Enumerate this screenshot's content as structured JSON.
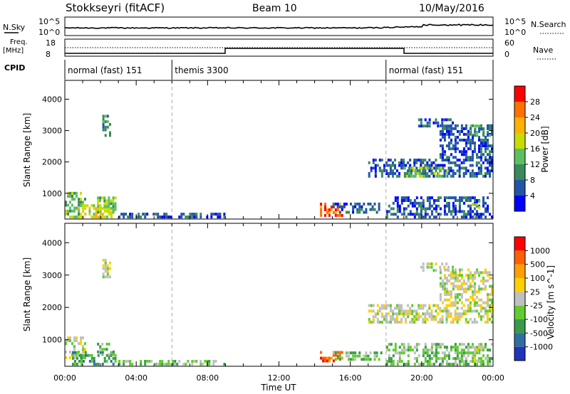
{
  "header": {
    "title": "Stokkseyri (fitACF)",
    "beam": "Beam 10",
    "date": "10/May/2016"
  },
  "top_panels": {
    "nsky_label": "N.Sky",
    "nsky_ticks": [
      "10^5",
      "10^0"
    ],
    "nsearch_label": "N.Search",
    "nsearch_ticks": [
      "10^5",
      "10^0"
    ],
    "freq_label": "Freq.",
    "freq_unit": "[MHz]",
    "freq_ticks": [
      "18",
      "8"
    ],
    "nave_label": "Nave",
    "nave_ticks": [
      "60",
      "0"
    ],
    "cpid_label": "CPID",
    "cpid_segments": [
      {
        "label": "normal (fast) 151",
        "start_h": 0,
        "end_h": 6
      },
      {
        "label": "themis 3300",
        "start_h": 6,
        "end_h": 18
      },
      {
        "label": "normal (fast) 151",
        "start_h": 18,
        "end_h": 24
      }
    ]
  },
  "chart_data": [
    {
      "type": "heatmap",
      "name": "power",
      "ylabel": "Slant Range [km]",
      "xlabel": "Time UT",
      "xlim": [
        0,
        24
      ],
      "ylim": [
        180,
        4600
      ],
      "y_ticks": [
        "1000",
        "2000",
        "3000",
        "4000"
      ],
      "x_ticks": [
        "00:00",
        "04:00",
        "08:00",
        "12:00",
        "16:00",
        "20:00",
        "00:00"
      ],
      "colorbar_label": "Power [dB]",
      "colorbar_ticks": [
        "4",
        "8",
        "12",
        "16",
        "20",
        "24",
        "28"
      ],
      "colorbar_range": [
        0,
        32
      ],
      "colors": [
        "#0000ff",
        "#2255aa",
        "#3a8a5a",
        "#5cc060",
        "#c8dc00",
        "#ffb000",
        "#ff7000",
        "#ff0000"
      ],
      "regions": [
        {
          "t0": 0.0,
          "t1": 1.2,
          "r0": 200,
          "r1": 1050,
          "level": 3
        },
        {
          "t0": 0.6,
          "t1": 2.8,
          "r0": 200,
          "r1": 650,
          "level": 4
        },
        {
          "t0": 1.8,
          "t1": 2.9,
          "r0": 350,
          "r1": 900,
          "level": 3
        },
        {
          "t0": 2.1,
          "t1": 2.6,
          "r0": 2800,
          "r1": 3500,
          "level": 2
        },
        {
          "t0": 3.0,
          "t1": 9.0,
          "r0": 200,
          "r1": 380,
          "level": 1
        },
        {
          "t0": 14.3,
          "t1": 15.6,
          "r0": 250,
          "r1": 700,
          "level": 6
        },
        {
          "t0": 15.0,
          "t1": 17.8,
          "r0": 350,
          "r1": 700,
          "level": 1
        },
        {
          "t0": 17.0,
          "t1": 24.0,
          "r0": 1500,
          "r1": 2100,
          "level": 1
        },
        {
          "t0": 19.0,
          "t1": 21.5,
          "r0": 1500,
          "r1": 1850,
          "level": 3
        },
        {
          "t0": 21.0,
          "t1": 24.0,
          "r0": 2100,
          "r1": 3200,
          "level": 1
        },
        {
          "t0": 22.7,
          "t1": 24.0,
          "r0": 2800,
          "r1": 3200,
          "level": 2
        },
        {
          "t0": 19.8,
          "t1": 21.8,
          "r0": 3100,
          "r1": 3400,
          "level": 1
        },
        {
          "t0": 18.0,
          "t1": 24.0,
          "r0": 200,
          "r1": 900,
          "level": 1
        },
        {
          "t0": 22.8,
          "t1": 23.3,
          "r0": 500,
          "r1": 800,
          "level": 4
        }
      ]
    },
    {
      "type": "heatmap",
      "name": "velocity",
      "ylabel": "Slant Range [km]",
      "xlabel": "Time UT",
      "xlim": [
        0,
        24
      ],
      "ylim": [
        180,
        4600
      ],
      "y_ticks": [
        "1000",
        "2000",
        "3000",
        "4000"
      ],
      "x_ticks": [
        "00:00",
        "04:00",
        "08:00",
        "12:00",
        "16:00",
        "20:00",
        "00:00"
      ],
      "colorbar_label": "Velocity [m s^-1]",
      "colorbar_ticks": [
        "1000",
        "500",
        "100",
        "25",
        "-25",
        "-100",
        "-500",
        "-1000"
      ],
      "colors": [
        "#2233bb",
        "#2e6fa0",
        "#3a9a4a",
        "#60cc30",
        "#c0c0c0",
        "#ffd000",
        "#ffa000",
        "#ff6000",
        "#ff0000"
      ],
      "regions": [
        {
          "t0": 0.0,
          "t1": 1.2,
          "r0": 400,
          "r1": 1100,
          "level": 4
        },
        {
          "t0": 0.4,
          "t1": 2.9,
          "r0": 200,
          "r1": 650,
          "level": 2
        },
        {
          "t0": 1.8,
          "t1": 2.8,
          "r0": 500,
          "r1": 900,
          "level": 3
        },
        {
          "t0": 2.1,
          "t1": 2.6,
          "r0": 2900,
          "r1": 3500,
          "level": 4
        },
        {
          "t0": 3.0,
          "t1": 9.0,
          "r0": 200,
          "r1": 380,
          "level": 3
        },
        {
          "t0": 14.3,
          "t1": 15.6,
          "r0": 300,
          "r1": 650,
          "level": 7
        },
        {
          "t0": 15.0,
          "t1": 17.8,
          "r0": 350,
          "r1": 650,
          "level": 3
        },
        {
          "t0": 17.0,
          "t1": 24.0,
          "r0": 1500,
          "r1": 2100,
          "level": 4
        },
        {
          "t0": 21.0,
          "t1": 24.0,
          "r0": 2100,
          "r1": 3200,
          "level": 4
        },
        {
          "t0": 19.8,
          "t1": 21.8,
          "r0": 3100,
          "r1": 3400,
          "level": 4
        },
        {
          "t0": 18.0,
          "t1": 24.0,
          "r0": 200,
          "r1": 900,
          "level": 3
        },
        {
          "t0": 22.8,
          "t1": 23.3,
          "r0": 300,
          "r1": 800,
          "level": 4
        }
      ]
    }
  ]
}
